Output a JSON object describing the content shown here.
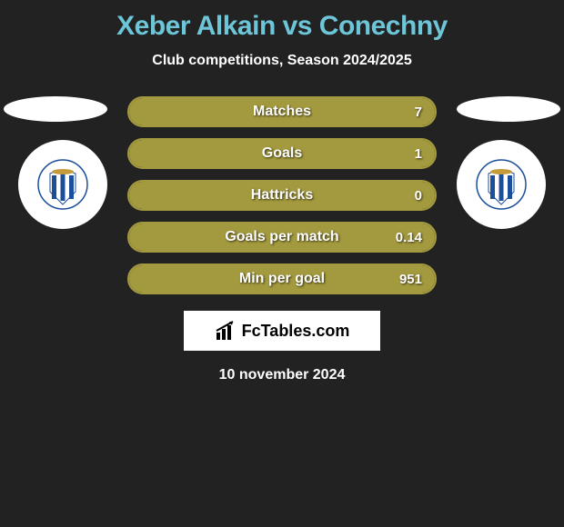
{
  "title": "Xeber Alkain vs Conechny",
  "subtitle": "Club competitions, Season 2024/2025",
  "date": "10 november 2024",
  "footer_brand": "FcTables.com",
  "colors": {
    "background": "#222222",
    "title": "#6dc5d8",
    "bar_fill": "#a3993e",
    "bar_border": "#a3993e",
    "text": "#ffffff"
  },
  "bars": [
    {
      "label": "Matches",
      "value": "7",
      "fill_pct": 100
    },
    {
      "label": "Goals",
      "value": "1",
      "fill_pct": 100
    },
    {
      "label": "Hattricks",
      "value": "0",
      "fill_pct": 100
    },
    {
      "label": "Goals per match",
      "value": "0.14",
      "fill_pct": 100
    },
    {
      "label": "Min per goal",
      "value": "951",
      "fill_pct": 100
    }
  ],
  "club_badge_colors": {
    "stripe1": "#1b4f9c",
    "stripe2": "#ffffff",
    "ring": "#1b4f9c"
  }
}
